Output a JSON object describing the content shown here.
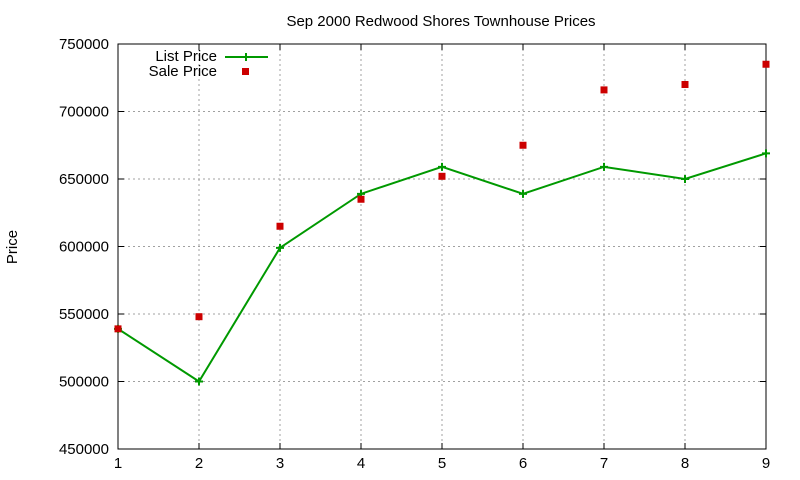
{
  "chart_data": {
    "type": "line",
    "title": "Sep 2000 Redwood Shores Townhouse Prices",
    "xlabel": "",
    "ylabel": "Price",
    "x": [
      1,
      2,
      3,
      4,
      5,
      6,
      7,
      8,
      9
    ],
    "xlim": [
      1,
      9
    ],
    "ylim": [
      450000,
      750000
    ],
    "x_ticks": [
      "1",
      "2",
      "3",
      "4",
      "5",
      "6",
      "7",
      "8",
      "9"
    ],
    "y_ticks": [
      "450000",
      "500000",
      "550000",
      "600000",
      "650000",
      "700000",
      "750000"
    ],
    "grid": true,
    "legend_position": "top-left",
    "series": [
      {
        "name": "List Price",
        "style": "line-with-plus-markers",
        "color": "#009900",
        "values": [
          539000,
          500000,
          599000,
          639000,
          659000,
          639000,
          659000,
          650000,
          669000
        ]
      },
      {
        "name": "Sale Price",
        "style": "square-markers",
        "color": "#cc0000",
        "values": [
          539000,
          548000,
          615000,
          635000,
          652000,
          675000,
          716000,
          720000,
          735000
        ]
      }
    ]
  }
}
